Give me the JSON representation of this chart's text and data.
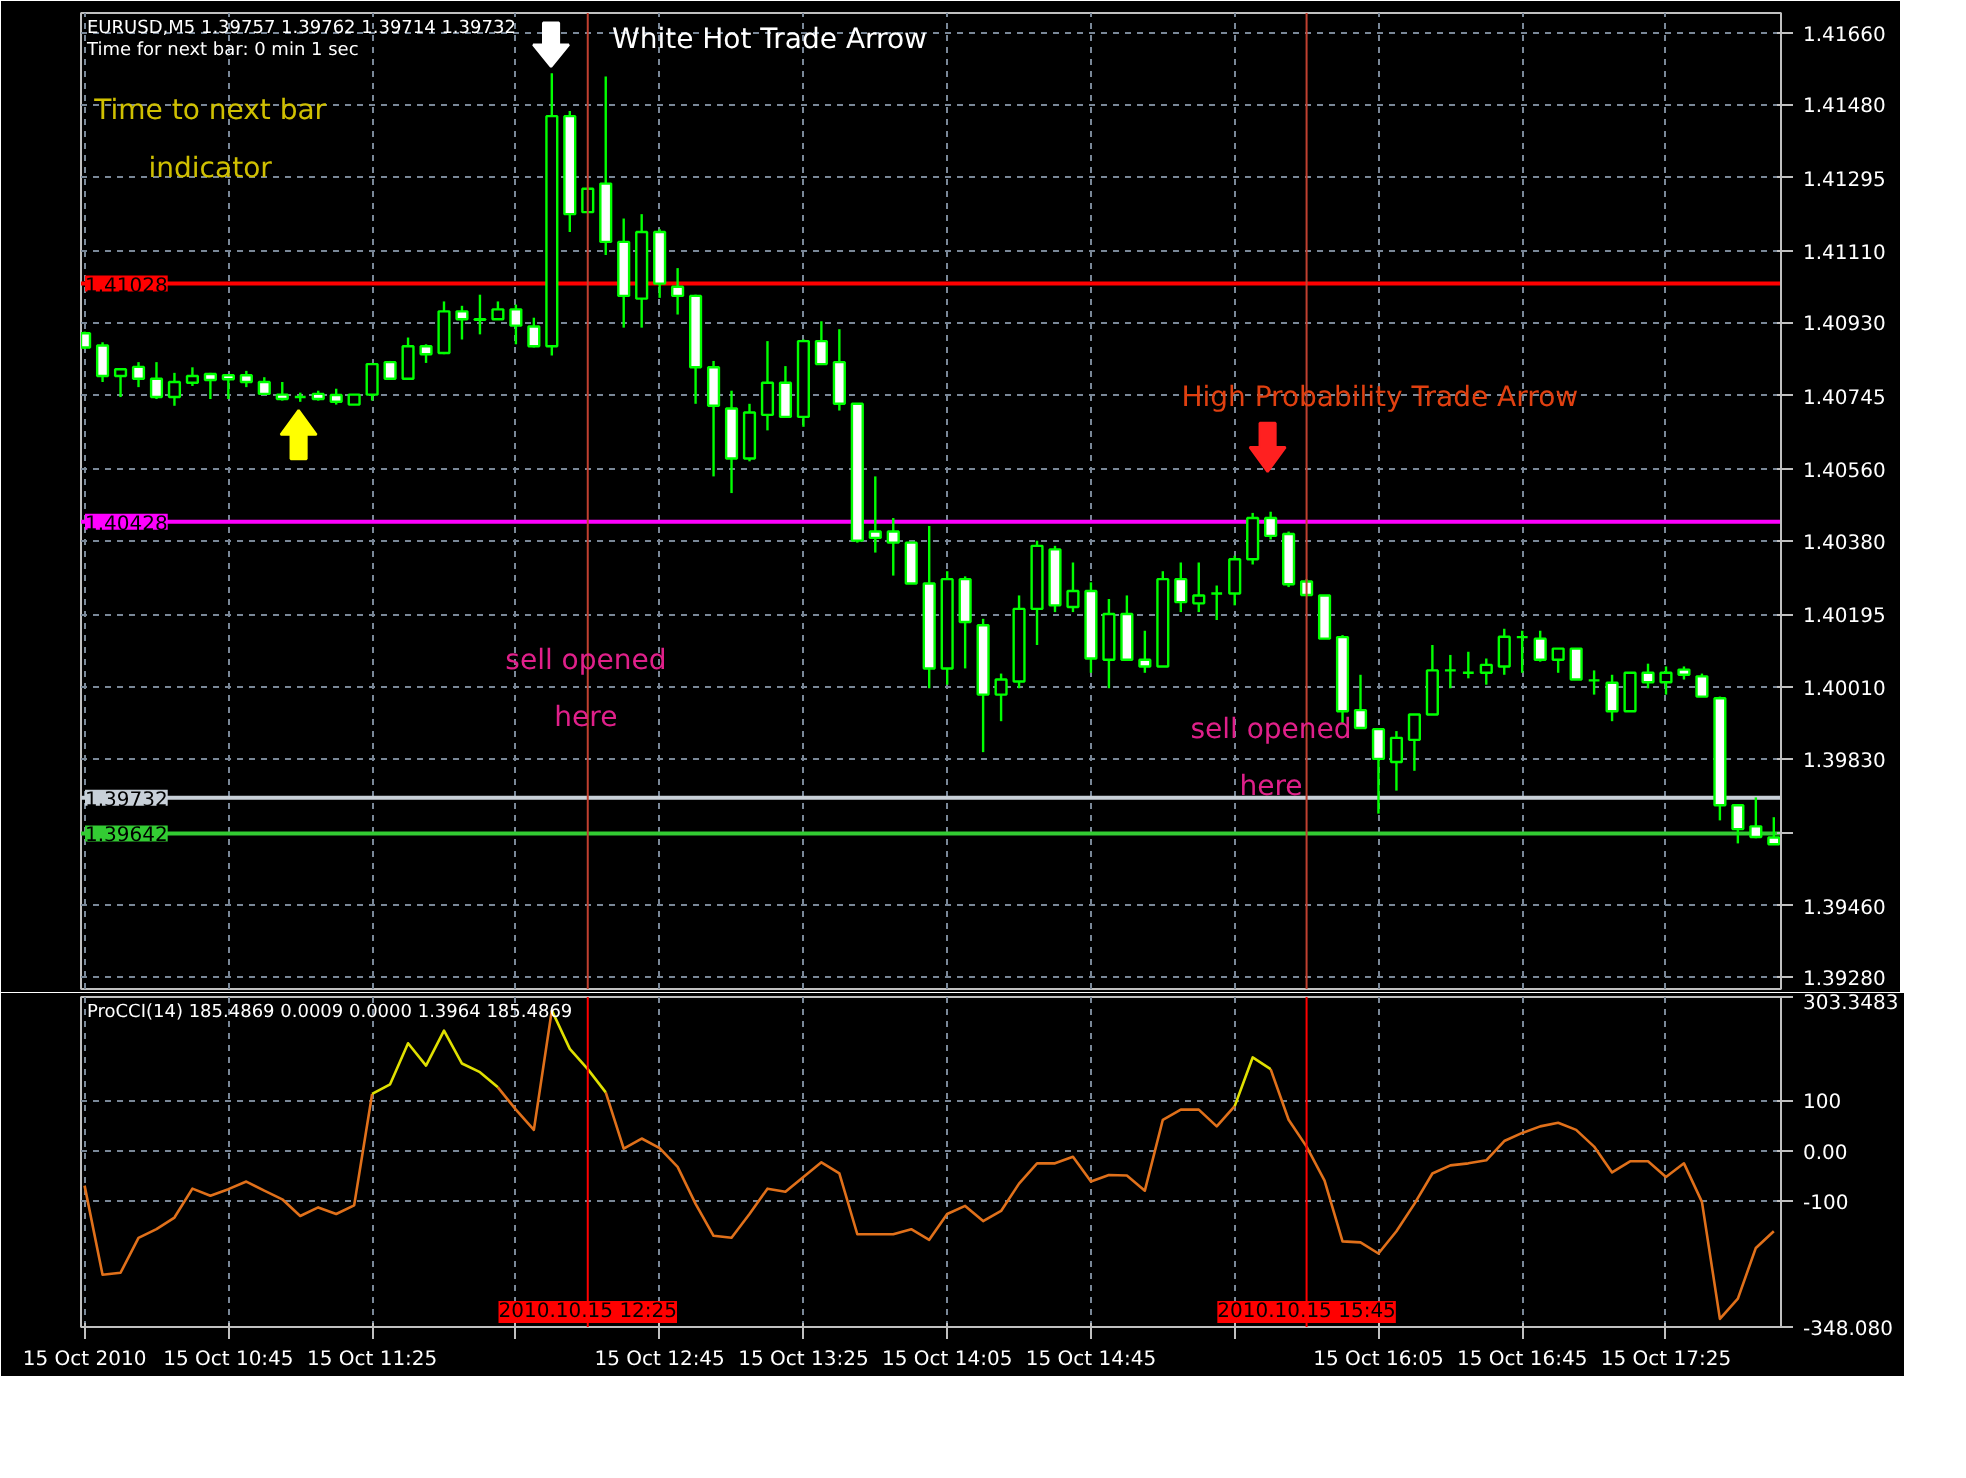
{
  "chart_data": [
    {
      "type": "candlestick",
      "title": "EURUSD,M5  1.39757 1.39762 1.39714 1.39732",
      "subtitle": "Time for next bar: 0 min 1 sec",
      "color": "#00ff00",
      "x": [
        "2010-10-15T10:05",
        "2010-10-15T10:10",
        "2010-10-15T10:15",
        "2010-10-15T10:20",
        "2010-10-15T10:25",
        "2010-10-15T10:30",
        "2010-10-15T10:35",
        "2010-10-15T10:40",
        "2010-10-15T10:45",
        "2010-10-15T10:50",
        "2010-10-15T10:55",
        "2010-10-15T11:00",
        "2010-10-15T11:05",
        "2010-10-15T11:10",
        "2010-10-15T11:15",
        "2010-10-15T11:20",
        "2010-10-15T11:25",
        "2010-10-15T11:30",
        "2010-10-15T11:35",
        "2010-10-15T11:40",
        "2010-10-15T11:45",
        "2010-10-15T11:50",
        "2010-10-15T11:55",
        "2010-10-15T12:00",
        "2010-10-15T12:05",
        "2010-10-15T12:10",
        "2010-10-15T12:15",
        "2010-10-15T12:20",
        "2010-10-15T12:25",
        "2010-10-15T12:30",
        "2010-10-15T12:35",
        "2010-10-15T12:40",
        "2010-10-15T12:45",
        "2010-10-15T12:50",
        "2010-10-15T12:55",
        "2010-10-15T13:00",
        "2010-10-15T13:05",
        "2010-10-15T13:10",
        "2010-10-15T13:15",
        "2010-10-15T13:20",
        "2010-10-15T13:25",
        "2010-10-15T13:30",
        "2010-10-15T13:35",
        "2010-10-15T13:40",
        "2010-10-15T13:45",
        "2010-10-15T13:50",
        "2010-10-15T13:55",
        "2010-10-15T14:00",
        "2010-10-15T14:05",
        "2010-10-15T14:10",
        "2010-10-15T14:15",
        "2010-10-15T14:20",
        "2010-10-15T14:25",
        "2010-10-15T14:30",
        "2010-10-15T14:35",
        "2010-10-15T14:40",
        "2010-10-15T14:45",
        "2010-10-15T14:50",
        "2010-10-15T14:55",
        "2010-10-15T15:00",
        "2010-10-15T15:05",
        "2010-10-15T15:10",
        "2010-10-15T15:15",
        "2010-10-15T15:20",
        "2010-10-15T15:25",
        "2010-10-15T15:30",
        "2010-10-15T15:35",
        "2010-10-15T15:40",
        "2010-10-15T15:45",
        "2010-10-15T15:50",
        "2010-10-15T15:55",
        "2010-10-15T16:00",
        "2010-10-15T16:05",
        "2010-10-15T16:10",
        "2010-10-15T16:15",
        "2010-10-15T16:20",
        "2010-10-15T16:25",
        "2010-10-15T16:30",
        "2010-10-15T16:35",
        "2010-10-15T16:40",
        "2010-10-15T16:45",
        "2010-10-15T16:50",
        "2010-10-15T16:55",
        "2010-10-15T17:00",
        "2010-10-15T17:05",
        "2010-10-15T17:10",
        "2010-10-15T17:15",
        "2010-10-15T17:20",
        "2010-10-15T17:25",
        "2010-10-15T17:30",
        "2010-10-15T17:35",
        "2010-10-15T17:40",
        "2010-10-15T17:45",
        "2010-10-15T17:50",
        "2010-10-15T17:55"
      ],
      "ohlc": [
        [
          1.40903,
          1.40907,
          1.40863,
          1.40867
        ],
        [
          1.40872,
          1.4088,
          1.4078,
          1.40795
        ],
        [
          1.40795,
          1.40812,
          1.40742,
          1.40812
        ],
        [
          1.40818,
          1.4083,
          1.40767,
          1.40788
        ],
        [
          1.40788,
          1.4083,
          1.40737,
          1.40742
        ],
        [
          1.40742,
          1.40803,
          1.4072,
          1.4078
        ],
        [
          1.40778,
          1.40817,
          1.4077,
          1.40795
        ],
        [
          1.408,
          1.40803,
          1.40737,
          1.40785
        ],
        [
          1.40797,
          1.408,
          1.40737,
          1.40787
        ],
        [
          1.40797,
          1.40808,
          1.40767,
          1.4078
        ],
        [
          1.4078,
          1.40792,
          1.40747,
          1.4075
        ],
        [
          1.40748,
          1.4078,
          1.40733,
          1.40737
        ],
        [
          1.40742,
          1.40753,
          1.4073,
          1.40742
        ],
        [
          1.4075,
          1.40758,
          1.40733,
          1.40737
        ],
        [
          1.40747,
          1.40763,
          1.40723,
          1.4073
        ],
        [
          1.40723,
          1.40748,
          1.40723,
          1.40748
        ],
        [
          1.40748,
          1.40828,
          1.40733,
          1.40825
        ],
        [
          1.4083,
          1.40833,
          1.40787,
          1.40788
        ],
        [
          1.40788,
          1.40892,
          1.40787,
          1.4087
        ],
        [
          1.4087,
          1.40875,
          1.40828,
          1.4085
        ],
        [
          1.40853,
          1.40983,
          1.4085,
          1.40958
        ],
        [
          1.40958,
          1.40972,
          1.40887,
          1.40938
        ],
        [
          1.40938,
          1.41,
          1.409,
          1.40937
        ],
        [
          1.40938,
          1.40983,
          1.40937,
          1.40963
        ],
        [
          1.40963,
          1.40975,
          1.40875,
          1.40922
        ],
        [
          1.4092,
          1.40942,
          1.40867,
          1.4087
        ],
        [
          1.4087,
          1.41558,
          1.40847,
          1.4145
        ],
        [
          1.4145,
          1.41463,
          1.41158,
          1.41203
        ],
        [
          1.41208,
          1.41267,
          1.41208,
          1.41267
        ],
        [
          1.4128,
          1.4155,
          1.411,
          1.41133
        ],
        [
          1.41133,
          1.41192,
          1.40917,
          1.40997
        ],
        [
          1.4099,
          1.41203,
          1.40917,
          1.41158
        ],
        [
          1.41158,
          1.41165,
          1.40992,
          1.41028
        ],
        [
          1.4102,
          1.41067,
          1.4095,
          1.40997
        ],
        [
          1.40997,
          1.41,
          1.40725,
          1.40817
        ],
        [
          1.40817,
          1.40833,
          1.40542,
          1.4072
        ],
        [
          1.40713,
          1.40758,
          1.405,
          1.40587
        ],
        [
          1.40587,
          1.40725,
          1.4058,
          1.40703
        ],
        [
          1.40697,
          1.40883,
          1.40658,
          1.40778
        ],
        [
          1.40778,
          1.4082,
          1.40692,
          1.40692
        ],
        [
          1.40692,
          1.40887,
          1.40667,
          1.40883
        ],
        [
          1.40883,
          1.40933,
          1.40825,
          1.40825
        ],
        [
          1.4083,
          1.40913,
          1.40708,
          1.40725
        ],
        [
          1.40725,
          1.40725,
          1.40375,
          1.4038
        ],
        [
          1.40403,
          1.40542,
          1.4035,
          1.40387
        ],
        [
          1.40403,
          1.40437,
          1.40292,
          1.40375
        ],
        [
          1.40375,
          1.40375,
          1.40272,
          1.40272
        ],
        [
          1.40272,
          1.40417,
          1.40008,
          1.40058
        ],
        [
          1.40058,
          1.40303,
          1.40017,
          1.40283
        ],
        [
          1.40283,
          1.4029,
          1.40058,
          1.40175
        ],
        [
          1.40167,
          1.40183,
          1.39847,
          1.39992
        ],
        [
          1.39992,
          1.40045,
          1.39925,
          1.4003
        ],
        [
          1.40025,
          1.40242,
          1.40008,
          1.40208
        ],
        [
          1.40208,
          1.4038,
          1.40117,
          1.40367
        ],
        [
          1.40358,
          1.40367,
          1.402,
          1.40217
        ],
        [
          1.40213,
          1.40325,
          1.402,
          1.40253
        ],
        [
          1.40253,
          1.40275,
          1.40047,
          1.40083
        ],
        [
          1.4008,
          1.40233,
          1.40008,
          1.40195
        ],
        [
          1.40195,
          1.40242,
          1.4008,
          1.4008
        ],
        [
          1.4008,
          1.40153,
          1.40047,
          1.40063
        ],
        [
          1.40063,
          1.40303,
          1.40063,
          1.40283
        ],
        [
          1.40283,
          1.40325,
          1.402,
          1.40225
        ],
        [
          1.40222,
          1.40325,
          1.402,
          1.40242
        ],
        [
          1.40247,
          1.40267,
          1.4018,
          1.40247
        ],
        [
          1.40247,
          1.40342,
          1.40217,
          1.40333
        ],
        [
          1.40333,
          1.4045,
          1.4032,
          1.40437
        ],
        [
          1.40437,
          1.40453,
          1.40383,
          1.40392
        ],
        [
          1.40397,
          1.40403,
          1.40263,
          1.4027
        ],
        [
          1.40277,
          1.40283,
          1.40243,
          1.40243
        ],
        [
          1.40242,
          1.40242,
          1.40133,
          1.40133
        ],
        [
          1.40137,
          1.40142,
          1.39917,
          1.3995
        ],
        [
          1.39953,
          1.40042,
          1.39908,
          1.39908
        ],
        [
          1.39905,
          1.39905,
          1.39692,
          1.3983
        ],
        [
          1.39822,
          1.399,
          1.3975,
          1.39883
        ],
        [
          1.39878,
          1.39942,
          1.398,
          1.39942
        ],
        [
          1.39942,
          1.40117,
          1.39942,
          1.40053
        ],
        [
          1.40053,
          1.40092,
          1.40008,
          1.40053
        ],
        [
          1.40047,
          1.401,
          1.40033,
          1.40047
        ],
        [
          1.40047,
          1.40083,
          1.40017,
          1.40067
        ],
        [
          1.40063,
          1.40158,
          1.40042,
          1.40138
        ],
        [
          1.40137,
          1.40153,
          1.40047,
          1.40137
        ],
        [
          1.40133,
          1.40153,
          1.40075,
          1.4008
        ],
        [
          1.4008,
          1.40108,
          1.40047,
          1.40108
        ],
        [
          1.40108,
          1.40108,
          1.4003,
          1.4003
        ],
        [
          1.40028,
          1.40053,
          1.39992,
          1.40028
        ],
        [
          1.40022,
          1.40042,
          1.39925,
          1.3995
        ],
        [
          1.3995,
          1.40047,
          1.3995,
          1.40047
        ],
        [
          1.40047,
          1.4007,
          1.40008,
          1.40023
        ],
        [
          1.40023,
          1.40063,
          1.39992,
          1.40047
        ],
        [
          1.40055,
          1.40063,
          1.4003,
          1.40042
        ],
        [
          1.40038,
          1.40045,
          1.39987,
          1.39987
        ],
        [
          1.39983,
          1.39987,
          1.39675,
          1.39713
        ],
        [
          1.39713,
          1.39713,
          1.39617,
          1.39653
        ],
        [
          1.3966,
          1.39733,
          1.3963,
          1.39633
        ],
        [
          1.39632,
          1.39683,
          1.39615,
          1.39615
        ]
      ],
      "xlim": [
        "2010-10-15T10:04",
        "2010-10-15T17:57"
      ],
      "ylim": [
        1.3925,
        1.4171
      ],
      "xticks": [
        {
          "value": "2010-10-15T10:05",
          "label": null
        },
        {
          "value": "2010-10-15T10:45",
          "label": null
        },
        {
          "value": "2010-10-15T11:25",
          "label": null
        },
        {
          "value": "2010-10-15T12:05",
          "label": null
        },
        {
          "value": "2010-10-15T12:45",
          "label": null
        },
        {
          "value": "2010-10-15T13:25",
          "label": null
        },
        {
          "value": "2010-10-15T14:05",
          "label": null
        },
        {
          "value": "2010-10-15T14:45",
          "label": null
        },
        {
          "value": "2010-10-15T15:25",
          "label": null
        },
        {
          "value": "2010-10-15T16:05",
          "label": null
        },
        {
          "value": "2010-10-15T16:45",
          "label": null
        },
        {
          "value": "2010-10-15T17:25",
          "label": null
        }
      ],
      "yticks": [
        {
          "value": 1.4166,
          "label": "1.41660"
        },
        {
          "value": 1.4148,
          "label": "1.41480"
        },
        {
          "value": 1.41295,
          "label": "1.41295"
        },
        {
          "value": 1.4111,
          "label": "1.41110"
        },
        {
          "value": 1.4093,
          "label": "1.40930"
        },
        {
          "value": 1.40745,
          "label": "1.40745"
        },
        {
          "value": 1.4056,
          "label": "1.40560"
        },
        {
          "value": 1.4038,
          "label": "1.40380"
        },
        {
          "value": 1.40195,
          "label": "1.40195"
        },
        {
          "value": 1.4001,
          "label": "1.40010"
        },
        {
          "value": 1.3983,
          "label": "1.39830"
        },
        {
          "value": 1.39645,
          "label": null
        },
        {
          "value": 1.3946,
          "label": "1.39460"
        },
        {
          "value": 1.3928,
          "label": "1.39280"
        }
      ],
      "tick_labels": "y",
      "grid": true,
      "ref_lines": [
        {
          "axis": "y",
          "value": 1.41028,
          "label": "1.41028",
          "color": "#ff0000"
        },
        {
          "axis": "y",
          "value": 1.40428,
          "label": "1.40428",
          "color": "#ff00ff"
        },
        {
          "axis": "y",
          "value": 1.39732,
          "label": "1.39732",
          "color": "#c8d0d8"
        },
        {
          "axis": "y",
          "value": 1.39642,
          "label": "1.39642",
          "color": "#33cc33"
        },
        {
          "axis": "x",
          "value": "2010-10-15T12:25",
          "color": "#c04030"
        },
        {
          "axis": "x",
          "value": "2010-10-15T15:45",
          "color": "#c04030"
        }
      ],
      "annotations": [
        "Time to next bar\nindicator",
        "White Hot Trade Arrow",
        "High Probability Trade Arrow",
        "sell opened\nhere",
        "sell opened\nhere"
      ]
    },
    {
      "type": "line",
      "title": "ProCCI(14) 185.4869 0.0009 0.0000 1.3964 185.4869",
      "x": [
        "2010-10-15T10:05",
        "2010-10-15T10:10",
        "2010-10-15T10:15",
        "2010-10-15T10:20",
        "2010-10-15T10:25",
        "2010-10-15T10:30",
        "2010-10-15T10:35",
        "2010-10-15T10:40",
        "2010-10-15T10:45",
        "2010-10-15T10:50",
        "2010-10-15T10:55",
        "2010-10-15T11:00",
        "2010-10-15T11:05",
        "2010-10-15T11:10",
        "2010-10-15T11:15",
        "2010-10-15T11:20",
        "2010-10-15T11:25",
        "2010-10-15T11:30",
        "2010-10-15T11:35",
        "2010-10-15T11:40",
        "2010-10-15T11:45",
        "2010-10-15T11:50",
        "2010-10-15T11:55",
        "2010-10-15T12:00",
        "2010-10-15T12:05",
        "2010-10-15T12:10",
        "2010-10-15T12:15",
        "2010-10-15T12:20",
        "2010-10-15T12:25",
        "2010-10-15T12:30",
        "2010-10-15T12:35",
        "2010-10-15T12:40",
        "2010-10-15T12:45",
        "2010-10-15T12:50",
        "2010-10-15T12:55",
        "2010-10-15T13:00",
        "2010-10-15T13:05",
        "2010-10-15T13:10",
        "2010-10-15T13:15",
        "2010-10-15T13:20",
        "2010-10-15T13:25",
        "2010-10-15T13:30",
        "2010-10-15T13:35",
        "2010-10-15T13:40",
        "2010-10-15T13:45",
        "2010-10-15T13:50",
        "2010-10-15T13:55",
        "2010-10-15T14:00",
        "2010-10-15T14:05",
        "2010-10-15T14:10",
        "2010-10-15T14:15",
        "2010-10-15T14:20",
        "2010-10-15T14:25",
        "2010-10-15T14:30",
        "2010-10-15T14:35",
        "2010-10-15T14:40",
        "2010-10-15T14:45",
        "2010-10-15T14:50",
        "2010-10-15T14:55",
        "2010-10-15T15:00",
        "2010-10-15T15:05",
        "2010-10-15T15:10",
        "2010-10-15T15:15",
        "2010-10-15T15:20",
        "2010-10-15T15:25",
        "2010-10-15T15:30",
        "2010-10-15T15:35",
        "2010-10-15T15:40",
        "2010-10-15T15:45",
        "2010-10-15T15:50",
        "2010-10-15T15:55",
        "2010-10-15T16:00",
        "2010-10-15T16:05",
        "2010-10-15T16:10",
        "2010-10-15T16:15",
        "2010-10-15T16:20",
        "2010-10-15T16:25",
        "2010-10-15T16:30",
        "2010-10-15T16:35",
        "2010-10-15T16:40",
        "2010-10-15T16:45",
        "2010-10-15T16:50",
        "2010-10-15T16:55",
        "2010-10-15T17:00",
        "2010-10-15T17:05",
        "2010-10-15T17:10",
        "2010-10-15T17:15",
        "2010-10-15T17:20",
        "2010-10-15T17:25",
        "2010-10-15T17:30",
        "2010-10-15T17:35",
        "2010-10-15T17:40",
        "2010-10-15T17:45",
        "2010-10-15T17:50",
        "2010-10-15T17:55"
      ],
      "series": [
        {
          "color": "#e0701a",
          "values": [
            -69,
            -245,
            -241,
            -172,
            -155,
            -132,
            -75,
            -89,
            -76,
            -61,
            -79,
            -96,
            -129,
            -112,
            -125,
            -108,
            112,
            null,
            null,
            null,
            null,
            null,
            null,
            125,
            81,
            41,
            277,
            null,
            null,
            115,
            4,
            24,
            5,
            -32,
            -105,
            -168,
            -172,
            -125,
            -75,
            -81,
            -52,
            -23,
            -45,
            -165,
            -165,
            -165,
            -155,
            -176,
            -125,
            -109,
            -139,
            -119,
            -65,
            -25,
            -25,
            -12,
            -61,
            -48,
            -49,
            -79,
            61,
            81,
            81,
            48,
            88,
            null,
            161,
            61,
            8,
            -59,
            -179,
            -181,
            -203,
            -159,
            -105,
            -45,
            -29,
            -25,
            -19,
            19,
            35,
            48,
            55,
            41,
            8,
            -43,
            -21,
            -21,
            -52,
            -25,
            -101,
            -332,
            -292,
            -192,
            -159
          ]
        },
        {
          "color": "#e0e000",
          "values": [
            null,
            null,
            null,
            null,
            null,
            null,
            null,
            null,
            null,
            null,
            null,
            null,
            null,
            null,
            null,
            null,
            112,
            131,
            212,
            168,
            237,
            172,
            155,
            125,
            null,
            null,
            277,
            201,
            161,
            115,
            null,
            null,
            null,
            null,
            null,
            null,
            null,
            null,
            null,
            null,
            null,
            null,
            null,
            null,
            null,
            null,
            null,
            null,
            null,
            null,
            null,
            null,
            null,
            null,
            null,
            null,
            null,
            null,
            null,
            null,
            null,
            null,
            null,
            null,
            88,
            184,
            161,
            null,
            null,
            null,
            null,
            null,
            null,
            null,
            null,
            null,
            null,
            null,
            null,
            null,
            null,
            null,
            null,
            null,
            null,
            null,
            null,
            null,
            null,
            null,
            null,
            null,
            null,
            null,
            null
          ]
        }
      ],
      "xlim": [
        "2010-10-15T10:04",
        "2010-10-15T17:57"
      ],
      "ylim": [
        -348.08,
        303.3483
      ],
      "xticks": [
        {
          "value": "2010-10-15T10:05",
          "label": "15 Oct 2010"
        },
        {
          "value": "2010-10-15T10:45",
          "label": "15 Oct 10:45"
        },
        {
          "value": "2010-10-15T11:25",
          "label": "15 Oct 11:25"
        },
        {
          "value": "2010-10-15T12:05",
          "label": null
        },
        {
          "value": "2010-10-15T12:45",
          "label": "15 Oct 12:45"
        },
        {
          "value": "2010-10-15T13:25",
          "label": "15 Oct 13:25"
        },
        {
          "value": "2010-10-15T14:05",
          "label": "15 Oct 14:05"
        },
        {
          "value": "2010-10-15T14:45",
          "label": "15 Oct 14:45"
        },
        {
          "value": "2010-10-15T15:25",
          "label": null
        },
        {
          "value": "2010-10-15T16:05",
          "label": "15 Oct 16:05"
        },
        {
          "value": "2010-10-15T16:45",
          "label": "15 Oct 16:45"
        },
        {
          "value": "2010-10-15T17:25",
          "label": "15 Oct 17:25"
        }
      ],
      "yticks": [
        {
          "value": 303.3483,
          "label": "303.3483"
        },
        100,
        {
          "value": 0,
          "label": "0.00"
        },
        -100,
        {
          "value": -348.08,
          "label": "-348.080"
        }
      ],
      "grid": true,
      "ref_lines": [
        {
          "axis": "x",
          "value": "2010-10-15T12:25",
          "label": "2010.10.15 12:25",
          "color": "#ff0000"
        },
        {
          "axis": "x",
          "value": "2010-10-15T15:45",
          "label": "2010.10.15 15:45",
          "color": "#ff0000"
        }
      ]
    }
  ]
}
